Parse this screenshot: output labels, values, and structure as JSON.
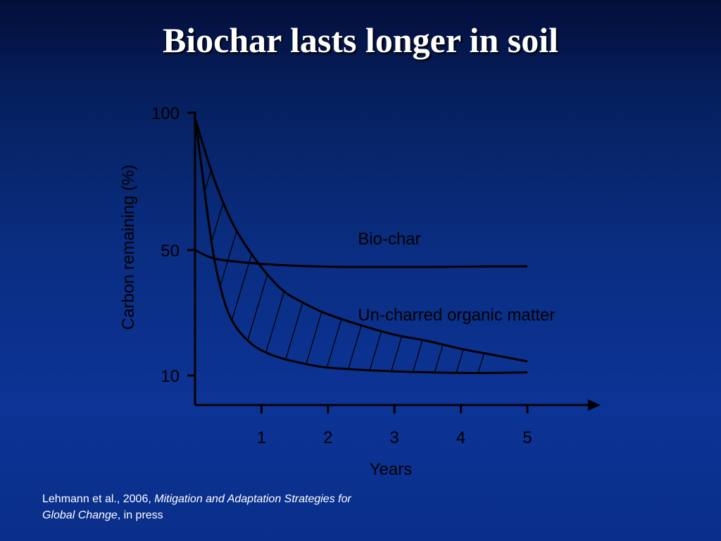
{
  "slide": {
    "title": "Biochar lasts longer in soil"
  },
  "citation": {
    "authors": "Lehmann et al., 2006, ",
    "journal": "Mitigation and Adaptation Strategies for Global Change",
    "suffix": ", in press"
  },
  "chart_data": {
    "type": "line",
    "xlabel": "Years",
    "ylabel": "Carbon remaining (%)",
    "x_ticks": [
      1,
      2,
      3,
      4,
      5
    ],
    "y_ticks": [
      10,
      50,
      100
    ],
    "xlim": [
      0,
      5
    ],
    "ylim": [
      10,
      100
    ],
    "grid": false,
    "series": [
      {
        "name": "Bio-char",
        "x": [
          0,
          0.25,
          0.5,
          1,
          1.5,
          2,
          2.5,
          3,
          3.5,
          4,
          4.5,
          5
        ],
        "values": [
          50,
          47.5,
          46.6,
          45.6,
          45,
          44.7,
          44.6,
          44.6,
          44.6,
          44.7,
          44.8,
          44.8
        ]
      },
      {
        "name": "Un-charred organic matter",
        "band": "hatched",
        "upper": {
          "x": [
            0,
            0.15,
            0.3,
            0.5,
            0.7,
            1,
            1.3,
            1.6,
            2,
            2.5,
            3,
            3.5,
            4,
            4.5,
            5
          ],
          "values": [
            98,
            86,
            75,
            63,
            54,
            44.5,
            37.5,
            33.5,
            29.5,
            26,
            23,
            21,
            18.5,
            16.5,
            14.5
          ]
        },
        "lower": {
          "x": [
            0,
            0.1,
            0.2,
            0.3,
            0.45,
            0.6,
            0.8,
            1,
            1.3,
            1.7,
            2,
            2.5,
            3,
            3.5,
            4,
            4.5,
            5
          ],
          "values": [
            98,
            80,
            61,
            46,
            33,
            26,
            21,
            18,
            15.5,
            13.5,
            12.5,
            11.8,
            11.3,
            11,
            10.8,
            10.8,
            11
          ]
        }
      }
    ],
    "annotations": [
      {
        "text": "Bio-char",
        "x": 2.45,
        "y": 52
      },
      {
        "text": "Un-charred organic matter",
        "x": 2.45,
        "y": 27.5
      }
    ],
    "colors": {
      "axis": "#000000",
      "line": "#000000",
      "text": "#000000"
    }
  }
}
